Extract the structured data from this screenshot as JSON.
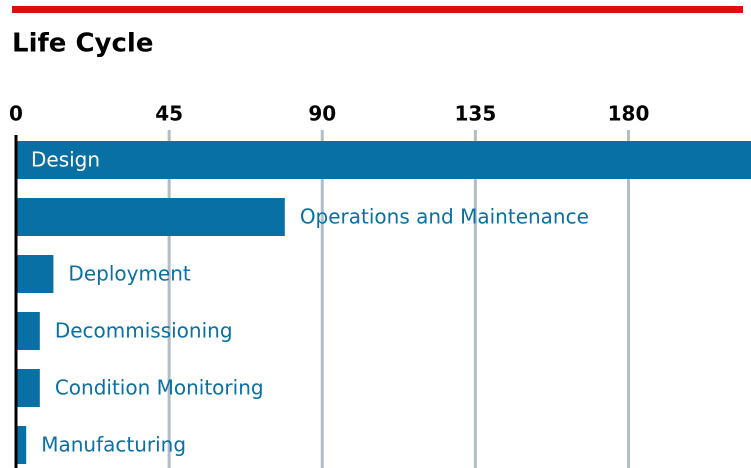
{
  "chart_data": {
    "type": "barh",
    "title": "Life Cycle",
    "categories": [
      "Design",
      "Operations and Maintenance",
      "Deployment",
      "Decommissioning",
      "Condition Monitoring",
      "Manufacturing"
    ],
    "values": [
      217,
      79,
      11,
      7,
      7,
      3
    ],
    "color": "#0870a4",
    "xlim": [
      0,
      216
    ],
    "xticks": [
      0,
      45,
      90,
      135,
      180
    ],
    "grid": true
  }
}
